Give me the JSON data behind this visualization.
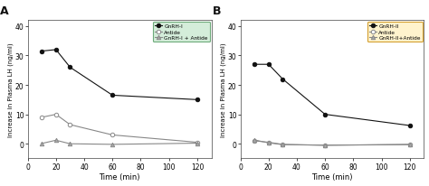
{
  "panel_A": {
    "label": "A",
    "legend_box_color": "#d4edda",
    "legend_edge_color": "#6daa7a",
    "series": [
      {
        "name": "GnRH-I",
        "x": [
          10,
          20,
          30,
          60,
          120
        ],
        "y": [
          31.5,
          32.0,
          26.0,
          16.5,
          15.0
        ],
        "color": "#111111",
        "marker": "o",
        "markerfacecolor": "#111111",
        "linestyle": "-"
      },
      {
        "name": "Antide",
        "x": [
          10,
          20,
          30,
          60,
          120
        ],
        "y": [
          9.0,
          10.0,
          6.5,
          3.0,
          0.5
        ],
        "color": "#888888",
        "marker": "o",
        "markerfacecolor": "#ffffff",
        "linestyle": "-"
      },
      {
        "name": "GnRH-I + Antide",
        "x": [
          10,
          20,
          30,
          60,
          120
        ],
        "y": [
          0.1,
          1.2,
          0.0,
          -0.2,
          0.2
        ],
        "color": "#888888",
        "marker": "^",
        "markerfacecolor": "#aaaaaa",
        "linestyle": "-"
      }
    ],
    "xlabel": "Time (min)",
    "ylabel": "Increase in Plasma LH (ng/ml)",
    "xlim": [
      0,
      130
    ],
    "ylim": [
      -5,
      42
    ],
    "xticks": [
      0,
      20,
      40,
      60,
      80,
      100,
      120
    ],
    "yticks": [
      0,
      10,
      20,
      30,
      40
    ]
  },
  "panel_B": {
    "label": "B",
    "legend_box_color": "#fff3cd",
    "legend_edge_color": "#d4a030",
    "series": [
      {
        "name": "GnRH-II",
        "x": [
          10,
          20,
          30,
          60,
          120
        ],
        "y": [
          27.0,
          27.0,
          22.0,
          10.0,
          6.2
        ],
        "color": "#111111",
        "marker": "o",
        "markerfacecolor": "#111111",
        "linestyle": "-"
      },
      {
        "name": "Antide",
        "x": [
          10,
          20,
          30,
          60,
          120
        ],
        "y": [
          1.0,
          0.5,
          -0.2,
          -0.5,
          -0.2
        ],
        "color": "#888888",
        "marker": "o",
        "markerfacecolor": "#ffffff",
        "linestyle": "-"
      },
      {
        "name": "GnRH-II+Antide",
        "x": [
          10,
          20,
          30,
          60,
          120
        ],
        "y": [
          1.3,
          0.3,
          -0.3,
          -0.5,
          -0.3
        ],
        "color": "#888888",
        "marker": "^",
        "markerfacecolor": "#aaaaaa",
        "linestyle": "-"
      }
    ],
    "xlabel": "Time (min)",
    "ylabel": "Increase in Plasma LH (ng/ml)",
    "xlim": [
      0,
      130
    ],
    "ylim": [
      -5,
      42
    ],
    "xticks": [
      0,
      20,
      40,
      60,
      80,
      100,
      120
    ],
    "yticks": [
      0,
      10,
      20,
      30,
      40
    ]
  },
  "fig_facecolor": "#ffffff",
  "ax_facecolor": "#ffffff"
}
